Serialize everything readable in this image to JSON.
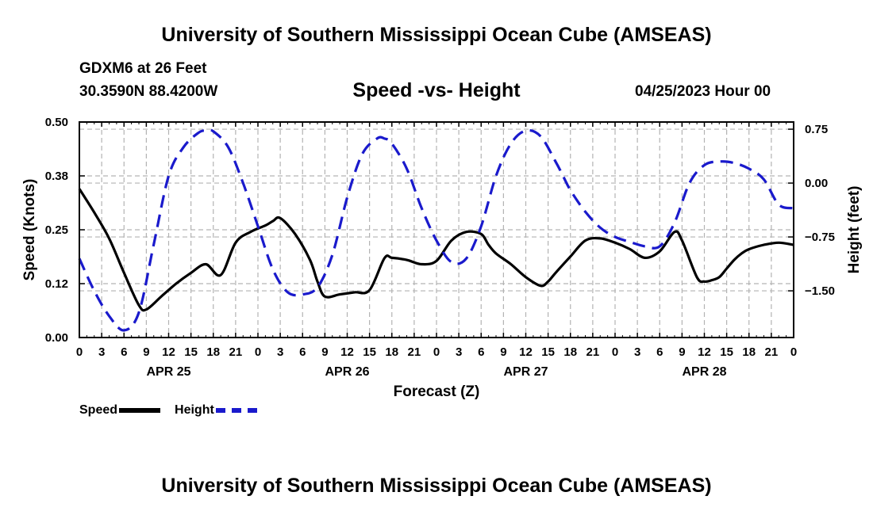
{
  "page": {
    "title": "University of Southern Mississippi Ocean Cube (AMSEAS)",
    "station": "GDXM6 at 26 Feet",
    "coords": "30.3590N  88.4200W",
    "subtitle": "Speed -vs- Height",
    "timestamp": "04/25/2023 Hour 00",
    "footer_title": "University of Southern Mississippi Ocean Cube (AMSEAS)"
  },
  "legend": {
    "speed_label": "Speed",
    "height_label": "Height"
  },
  "chart_data": {
    "type": "line",
    "xlabel": "Forecast (Z)",
    "ylabel_left": "Speed (Knots)",
    "ylabel_right": "Height (feet)",
    "xlim": [
      0,
      96
    ],
    "ylim_left": [
      0,
      0.5
    ],
    "ylim_right": [
      -2.15,
      0.85
    ],
    "grid": true,
    "x_tick_labels": [
      "0",
      "3",
      "6",
      "9",
      "12",
      "15",
      "18",
      "21",
      "0",
      "3",
      "6",
      "9",
      "12",
      "15",
      "18",
      "21",
      "0",
      "3",
      "6",
      "9",
      "12",
      "15",
      "18",
      "21",
      "0",
      "3",
      "6",
      "9",
      "12",
      "15",
      "18",
      "21",
      "0"
    ],
    "y_left_ticks": [
      0,
      0.125,
      0.25,
      0.375,
      0.5
    ],
    "y_left_tick_labels": [
      "0.00",
      "0.12",
      "0.25",
      "0.38",
      "0.50"
    ],
    "y_right_ticks": [
      -1.5,
      -0.75,
      0.0,
      0.75
    ],
    "y_right_tick_labels": [
      "−1.50",
      "−0.75",
      "0.00",
      "0.75"
    ],
    "day_labels": [
      {
        "x": 12,
        "label": "APR 25"
      },
      {
        "x": 36,
        "label": "APR 26"
      },
      {
        "x": 60,
        "label": "APR 27"
      },
      {
        "x": 84,
        "label": "APR 28"
      }
    ],
    "series": [
      {
        "name": "Speed",
        "axis": "left",
        "color": "#000000",
        "dash": "solid",
        "x": [
          0,
          2,
          4,
          6,
          8,
          9,
          11,
          13,
          15,
          17,
          19,
          21,
          23,
          25,
          26,
          27,
          29,
          31,
          32,
          33,
          35,
          37,
          39,
          41,
          42,
          44,
          46,
          48,
          50,
          52,
          54,
          55,
          56,
          58,
          60,
          62,
          63,
          64,
          66,
          68,
          70,
          72,
          74,
          76,
          78,
          80,
          81,
          83,
          84,
          85,
          86,
          87,
          88,
          89,
          90,
          92,
          94,
          96
        ],
        "values": [
          0.345,
          0.29,
          0.23,
          0.15,
          0.075,
          0.065,
          0.095,
          0.125,
          0.15,
          0.17,
          0.145,
          0.22,
          0.245,
          0.26,
          0.27,
          0.277,
          0.24,
          0.18,
          0.13,
          0.095,
          0.1,
          0.105,
          0.11,
          0.184,
          0.185,
          0.18,
          0.17,
          0.178,
          0.225,
          0.245,
          0.24,
          0.215,
          0.195,
          0.17,
          0.14,
          0.12,
          0.13,
          0.15,
          0.188,
          0.225,
          0.23,
          0.22,
          0.205,
          0.185,
          0.2,
          0.245,
          0.225,
          0.14,
          0.13,
          0.133,
          0.14,
          0.16,
          0.18,
          0.195,
          0.205,
          0.215,
          0.22,
          0.215
        ]
      },
      {
        "name": "Height",
        "axis": "right",
        "color": "#1a1acc",
        "dash": "dashed",
        "x": [
          0,
          2,
          4,
          6,
          8,
          10,
          12,
          14,
          16,
          17,
          18,
          20,
          22,
          24,
          26,
          28,
          30,
          32,
          34,
          36,
          38,
          40,
          41,
          42,
          44,
          46,
          48,
          50,
          52,
          54,
          56,
          58,
          60,
          62,
          64,
          65,
          66,
          68,
          70,
          72,
          74,
          76,
          78,
          80,
          82,
          84,
          86,
          88,
          90,
          92,
          94,
          96
        ],
        "values": [
          -1.05,
          -1.5,
          -1.85,
          -2.05,
          -1.8,
          -0.85,
          0.1,
          0.5,
          0.7,
          0.73,
          0.72,
          0.5,
          0.0,
          -0.6,
          -1.2,
          -1.52,
          -1.55,
          -1.45,
          -1.0,
          -0.2,
          0.4,
          0.62,
          0.62,
          0.55,
          0.2,
          -0.35,
          -0.8,
          -1.1,
          -1.05,
          -0.6,
          0.1,
          0.55,
          0.73,
          0.65,
          0.3,
          0.1,
          -0.1,
          -0.4,
          -0.62,
          -0.75,
          -0.82,
          -0.88,
          -0.88,
          -0.55,
          0.0,
          0.25,
          0.3,
          0.28,
          0.2,
          0.05,
          -0.3,
          -0.35
        ]
      }
    ]
  }
}
